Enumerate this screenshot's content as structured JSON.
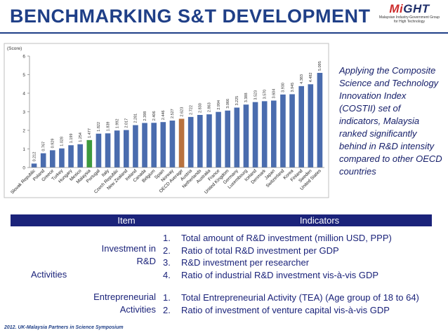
{
  "header": {
    "title": "BENCHMARKING S&T DEVELOPMENT",
    "logo_text": "MiGHT",
    "logo_sub1": "Malaysian Industry-Government Group",
    "logo_sub2": "for High Technology"
  },
  "side_text": "Applying the Composite Science and Technology Innovation Index (COSTII) set of indicators, Malaysia ranked significantly behind in R&D intensity compared to other OECD countries",
  "chart_data": {
    "type": "bar",
    "ylabel": "(Score)",
    "ylim": [
      0,
      6
    ],
    "yticks": [
      "0",
      "1",
      "2",
      "3",
      "4",
      "5",
      "6"
    ],
    "grid": false,
    "legend": "none",
    "categories": [
      "Slovak Republic",
      "Poland",
      "Greece",
      "Turkey",
      "Hungary",
      "Mexico",
      "Malaysia",
      "Portugal",
      "Italy",
      "Czech Republic",
      "New Zealand",
      "Ireland",
      "Canada",
      "Belgium",
      "Spain",
      "Norway",
      "OECD Average",
      "Austria",
      "Netherlands",
      "Australia",
      "France",
      "United Kingdom",
      "Germany",
      "Luxembourg",
      "Iceland",
      "Denmark",
      "Japan",
      "Switzerland",
      "Korea",
      "Finland",
      "Sweden",
      "United States"
    ],
    "values": [
      0.212,
      0.767,
      0.929,
      1.028,
      1.199,
      1.254,
      1.477,
      1.822,
      1.839,
      1.992,
      2.017,
      2.281,
      2.398,
      2.406,
      2.446,
      2.527,
      2.623,
      2.722,
      2.83,
      2.863,
      2.994,
      3.066,
      3.225,
      3.388,
      3.523,
      3.57,
      3.604,
      3.93,
      3.945,
      4.383,
      4.482,
      5.095
    ],
    "value_labels": [
      "0.212",
      "0.767",
      "0.929",
      "1.028",
      "1.199",
      "1.254",
      "1.477",
      "1.822",
      "1.839",
      "1.992",
      "2.017",
      "2.281",
      "2.398",
      "2.406",
      "2.446",
      "2.527",
      "2.623",
      "2.722",
      "2.830",
      "2.863",
      "2.994",
      "3.066",
      "3.225",
      "3.388",
      "3.523",
      "3.570",
      "3.604",
      "3.930",
      "3.945",
      "4.383",
      "4.482",
      "5.095"
    ],
    "colors": {
      "default": "#4a6cae",
      "highlight_malaysia": "#3d9a3d",
      "highlight_oecd": "#b9723e"
    }
  },
  "table": {
    "header_item": "Item",
    "header_indicators": "Indicators",
    "row_label": "Activities",
    "groups": [
      {
        "label": "Investment in R&D",
        "indicators": [
          {
            "num": "1.",
            "text": "Total amount of R&D investment (million USD, PPP)"
          },
          {
            "num": "2.",
            "text": "Ratio of total R&D investment per GDP"
          },
          {
            "num": "3.",
            "text": "R&D investment per researcher"
          },
          {
            "num": "4.",
            "text": "Ratio of industrial R&D investment vis-à-vis GDP"
          }
        ]
      },
      {
        "label": "Entrepreneurial Activities",
        "indicators": [
          {
            "num": "1.",
            "text": "Total Entrepreneurial Activity (TEA) (Age group of 18 to 64)"
          },
          {
            "num": "2.",
            "text": "Ratio of investment of venture capital vis-à-vis GDP"
          }
        ]
      }
    ]
  },
  "footer": "2012. UK-Malaysia Partners in Science Symposium"
}
